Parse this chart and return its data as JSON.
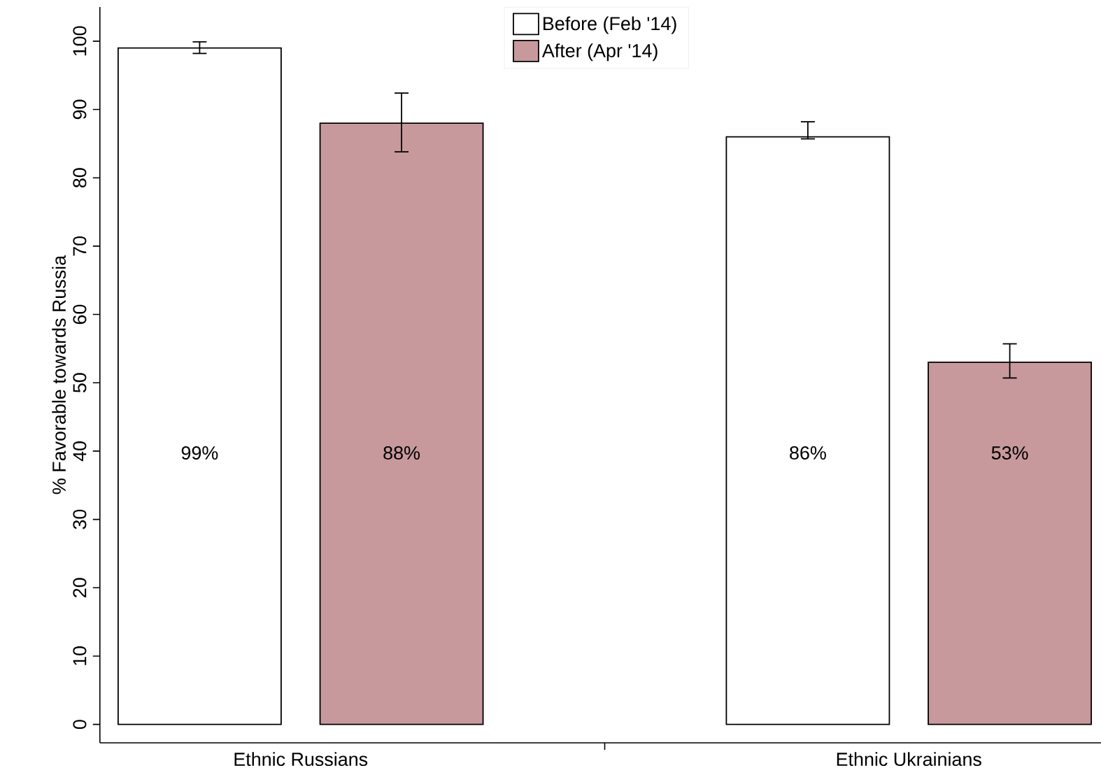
{
  "chart_data": {
    "type": "bar",
    "ylabel": "% Favorable towards Russia",
    "categories": [
      "Ethnic Russians",
      "Ethnic Ukrainians"
    ],
    "series": [
      {
        "name": "Before (Feb '14)",
        "color": "#ffffff",
        "values": [
          99,
          86
        ],
        "errors": [
          [
            98.2,
            99.9
          ],
          [
            85.7,
            88.2
          ]
        ],
        "value_labels": [
          "99%",
          "86%"
        ]
      },
      {
        "name": "After (Apr '14)",
        "color": "#c8999c",
        "values": [
          88,
          53
        ],
        "errors": [
          [
            83.8,
            92.4
          ],
          [
            50.7,
            55.7
          ]
        ],
        "value_labels": [
          "88%",
          "53%"
        ]
      }
    ],
    "ylim": [
      -2.7,
      105
    ],
    "yticks": [
      0,
      10,
      20,
      30,
      40,
      50,
      60,
      70,
      80,
      90,
      100
    ],
    "legend": "top",
    "grid": false
  }
}
